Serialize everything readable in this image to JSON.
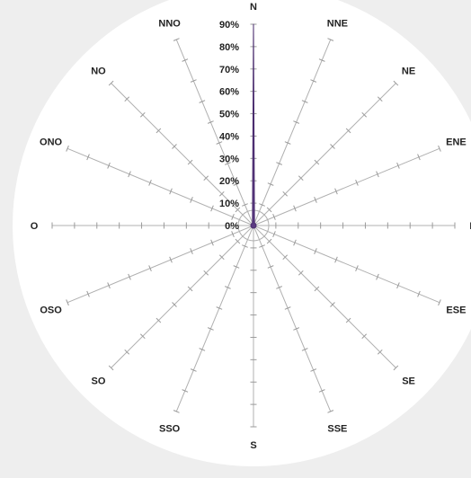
{
  "chart_data": {
    "type": "radar",
    "subtype": "filled",
    "directions": [
      "N",
      "NNE",
      "NE",
      "ENE",
      "E",
      "ESE",
      "SE",
      "SSE",
      "S",
      "SSO",
      "SO",
      "OSO",
      "O",
      "ONO",
      "NO",
      "NNO"
    ],
    "series": [
      {
        "values": [
          90,
          0,
          0,
          0,
          0,
          0,
          0,
          0,
          0,
          0,
          0,
          0,
          0,
          0,
          0,
          0
        ]
      }
    ],
    "radial_axis": {
      "min": 0,
      "max": 90,
      "step": 10,
      "tick_labels": [
        "0%",
        "10%",
        "20%",
        "30%",
        "40%",
        "50%",
        "60%",
        "70%",
        "80%",
        "90%"
      ]
    },
    "grid": false,
    "legend": "none"
  },
  "colors": {
    "page_background": "#eeeeee",
    "plot_background": "#ffffff",
    "series_fill": "#5b3a82",
    "series_stroke": "#4a2c6e",
    "spoke": "#b0b0b0",
    "text": "#222222"
  }
}
